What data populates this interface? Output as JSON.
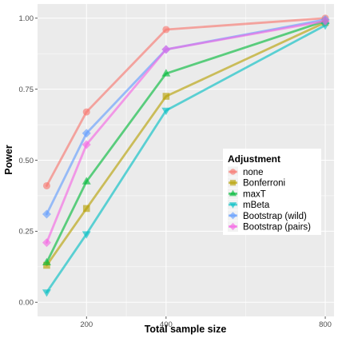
{
  "chart_data": {
    "type": "line",
    "xlabel": "Total sample size",
    "ylabel": "Power",
    "x": [
      100,
      200,
      400,
      800
    ],
    "x_ticks": [
      200,
      400,
      800
    ],
    "x_tick_labels": [
      "200",
      "400",
      "800"
    ],
    "xlim": [
      77,
      822
    ],
    "y_ticks": [
      0.0,
      0.25,
      0.5,
      0.75,
      1.0
    ],
    "y_tick_labels": [
      "0.00",
      "0.25",
      "0.50",
      "0.75",
      "1.00"
    ],
    "ylim": [
      -0.05,
      1.05
    ],
    "grid": true,
    "legend": {
      "title": "Adjustment",
      "placement": "right-inside"
    },
    "series": [
      {
        "name": "none",
        "color": "#F8766D",
        "marker": "circle",
        "values": [
          0.41,
          0.67,
          0.96,
          1.0
        ]
      },
      {
        "name": "Bonferroni",
        "color": "#B79F00",
        "marker": "square",
        "values": [
          0.13,
          0.33,
          0.725,
          0.985
        ]
      },
      {
        "name": "maxT",
        "color": "#00BA38",
        "marker": "triangle-up",
        "values": [
          0.14,
          0.425,
          0.805,
          0.99
        ]
      },
      {
        "name": "mBeta",
        "color": "#00BFC4",
        "marker": "triangle-down",
        "values": [
          0.035,
          0.24,
          0.675,
          0.975
        ]
      },
      {
        "name": "Bootstrap (wild)",
        "color": "#619CFF",
        "marker": "diamond",
        "values": [
          0.31,
          0.595,
          0.89,
          0.995
        ]
      },
      {
        "name": "Bootstrap (pairs)",
        "color": "#F564E3",
        "marker": "diamond",
        "values": [
          0.21,
          0.555,
          0.89,
          0.99
        ]
      }
    ]
  }
}
